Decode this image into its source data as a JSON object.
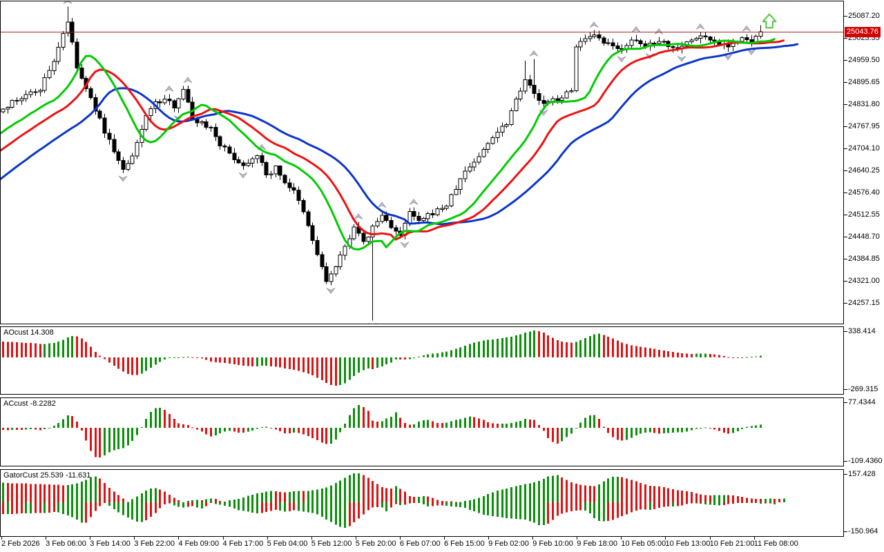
{
  "colors": {
    "background": "#ffffff",
    "frame": "#000000",
    "bull_candle": "#ffffff",
    "bear_candle": "#000000",
    "candle_outline": "#000000",
    "alligator_lips": "#00cc00",
    "alligator_teeth": "#ee1111",
    "alligator_jaw": "#0a35c8",
    "hist_green": "#0b8f0b",
    "hist_red": "#dd1111",
    "price_line": "#aa2222",
    "price_tag_bg": "#d40000",
    "price_tag_text": "#ffffff",
    "fractal_gray": "#b9b9c6",
    "fractal_edge": "#8a8a9a",
    "signal_arrow_green": "#3dbb3d",
    "signal_arrow_glow": "#bce98d",
    "axis_text": "#000000"
  },
  "chart_data": {
    "type": "candlestick_with_oscillators",
    "timeframe_note": "hourly candles, 2 Feb 2026 - 11 Feb 2026",
    "price_panel": {
      "current_price_label": "25043.76",
      "current_price": 25043.76,
      "y_ticks": [
        {
          "label": "25087.20",
          "value": 25087.2
        },
        {
          "label": "25023.35",
          "value": 25023.35
        },
        {
          "label": "24959.50",
          "value": 24959.5
        },
        {
          "label": "24895.65",
          "value": 24895.65
        },
        {
          "label": "24831.80",
          "value": 24831.8
        },
        {
          "label": "24767.95",
          "value": 24767.95
        },
        {
          "label": "24704.10",
          "value": 24704.1
        },
        {
          "label": "24640.25",
          "value": 24640.25
        },
        {
          "label": "24576.40",
          "value": 24576.4
        },
        {
          "label": "24512.55",
          "value": 24512.55
        },
        {
          "label": "24448.70",
          "value": 24448.7
        },
        {
          "label": "24384.85",
          "value": 24384.85
        },
        {
          "label": "24321.00",
          "value": 24321.0
        },
        {
          "label": "24257.15",
          "value": 24257.15
        }
      ],
      "y_range_est": [
        24199.0,
        25131.5
      ],
      "overlays": [
        "Alligator lips (green)",
        "Alligator teeth (red)",
        "Alligator jaw (blue)",
        "Fractal arrows (gray)",
        "Current price line (dark red)",
        "Buy signal arrow (green, top right)"
      ],
      "close_path_estimate": [
        [
          -45,
          24300
        ],
        [
          -34,
          24440
        ],
        [
          -22,
          24610
        ],
        [
          -10,
          24730
        ],
        [
          -4,
          24785
        ],
        [
          0,
          24825
        ],
        [
          4,
          24852
        ],
        [
          8,
          24880
        ],
        [
          11,
          24960
        ],
        [
          13,
          25040
        ],
        [
          14,
          25074
        ],
        [
          16,
          24940
        ],
        [
          18,
          24876
        ],
        [
          20,
          24820
        ],
        [
          22,
          24756
        ],
        [
          24,
          24700
        ],
        [
          26,
          24642
        ],
        [
          28,
          24680
        ],
        [
          30,
          24760
        ],
        [
          31,
          24806
        ],
        [
          33,
          24836
        ],
        [
          35,
          24846
        ],
        [
          37,
          24830
        ],
        [
          39,
          24880
        ],
        [
          41,
          24792
        ],
        [
          43,
          24780
        ],
        [
          45,
          24766
        ],
        [
          47,
          24720
        ],
        [
          49,
          24690
        ],
        [
          52,
          24656
        ],
        [
          54,
          24680
        ],
        [
          55,
          24692
        ],
        [
          57,
          24626
        ],
        [
          59,
          24650
        ],
        [
          61,
          24610
        ],
        [
          63,
          24580
        ],
        [
          65,
          24520
        ],
        [
          67,
          24440
        ],
        [
          69,
          24360
        ],
        [
          70,
          24322
        ],
        [
          72,
          24362
        ],
        [
          74,
          24420
        ],
        [
          76,
          24482
        ],
        [
          78,
          24430
        ],
        [
          80,
          24478
        ],
        [
          82,
          24512
        ],
        [
          84,
          24482
        ],
        [
          86,
          24450
        ],
        [
          88,
          24522
        ],
        [
          90,
          24492
        ],
        [
          93,
          24520
        ],
        [
          96,
          24542
        ],
        [
          100,
          24640
        ],
        [
          103,
          24682
        ],
        [
          106,
          24742
        ],
        [
          109,
          24782
        ],
        [
          111,
          24850
        ],
        [
          113,
          24908
        ],
        [
          115,
          24862
        ],
        [
          117,
          24832
        ],
        [
          119,
          24846
        ],
        [
          121,
          24856
        ],
        [
          123,
          24872
        ],
        [
          124,
          25006
        ],
        [
          126,
          25020
        ],
        [
          128,
          25028
        ],
        [
          130,
          25012
        ],
        [
          133,
          24992
        ],
        [
          136,
          25016
        ],
        [
          139,
          25002
        ],
        [
          142,
          25022
        ],
        [
          145,
          24996
        ],
        [
          148,
          25012
        ],
        [
          151,
          25032
        ],
        [
          154,
          25016
        ],
        [
          157,
          25006
        ],
        [
          160,
          25022
        ],
        [
          162,
          25012
        ],
        [
          164,
          25044
        ]
      ],
      "wick_overrides": {
        "14": {
          "high": 25117
        },
        "70": {
          "low": 24314
        },
        "80": {
          "low": 24208
        },
        "113": {
          "high": 24960
        },
        "115": {
          "high": 24965
        },
        "164": {
          "close": 25043.76
        }
      },
      "visible_bars": 165
    },
    "oscillators": {
      "ao": {
        "name": "AOcust",
        "value_label": "14.308",
        "axis_max_label": "338.414",
        "axis_min_label": "-269.315",
        "axis_max": 338.414,
        "axis_min": -269.315,
        "style": "green/red histogram (Awesome Oscillator)"
      },
      "ac": {
        "name": "ACcust",
        "value_label": "-8.2282",
        "axis_max_label": "77.4344",
        "axis_min_label": "-109.4360",
        "axis_max": 77.4344,
        "axis_min": -109.436,
        "style": "green/red histogram (Accelerator Oscillator)"
      },
      "gator": {
        "name": "GatorCust",
        "value_label_upper": "25.539",
        "value_label_lower": "-11.631",
        "axis_max_label": "157.428",
        "axis_min_label": "-150.964",
        "axis_max": 157.428,
        "axis_min": -150.964,
        "style": "double green/red histogram above and below zero (Gator Oscillator)"
      }
    },
    "x_labels": [
      "2 Feb 2026",
      "3 Feb 06:00",
      "3 Feb 14:00",
      "3 Feb 22:00",
      "4 Feb 09:00",
      "4 Feb 17:00",
      "5 Feb 04:00",
      "5 Feb 12:00",
      "5 Feb 20:00",
      "6 Feb 07:00",
      "6 Feb 15:00",
      "9 Feb 02:00",
      "9 Feb 10:00",
      "9 Feb 18:00",
      "10 Feb 05:00",
      "10 Feb 13:00",
      "10 Feb 21:00",
      "11 Feb 08:00"
    ]
  },
  "icons": {
    "buy_signal_arrow": "hollow-green-block-up-arrow",
    "fractal_up": "gray-3d-up-arrowhead",
    "fractal_down": "gray-3d-down-arrowhead"
  }
}
